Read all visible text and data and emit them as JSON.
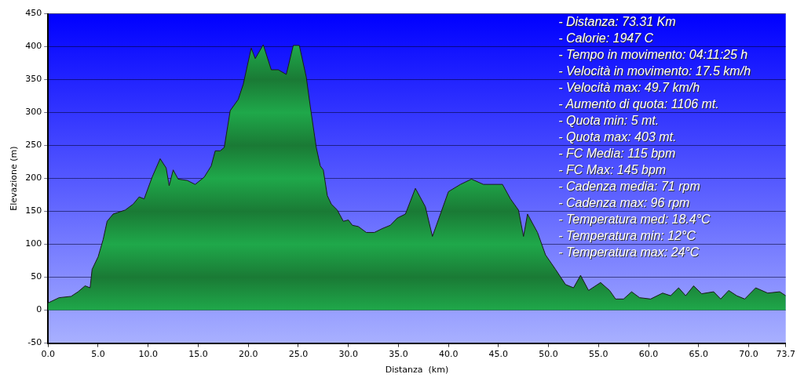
{
  "chart_data": {
    "type": "area",
    "xlabel": "Distanza  (km)",
    "ylabel": "Elevazione (m)",
    "x": [
      0,
      1.1,
      2.3,
      3.0,
      3.7,
      4.2,
      4.4,
      5.0,
      5.5,
      5.9,
      6.5,
      7.7,
      8.5,
      9.1,
      9.6,
      10.4,
      11.2,
      11.8,
      12.1,
      12.5,
      13,
      13.9,
      14.7,
      15.6,
      16.3,
      16.7,
      17.2,
      17.6,
      18.2,
      19,
      19.5,
      20.3,
      20.7,
      21.5,
      22.3,
      23,
      23.8,
      24.5,
      25.1,
      25.8,
      26.2,
      26.8,
      27.2,
      27.5,
      27.9,
      28.3,
      28.9,
      29.5,
      30,
      30.4,
      31,
      31.8,
      32.6,
      33.4,
      34.2,
      34.9,
      35.7,
      36.7,
      37.7,
      38.4,
      39.2,
      40,
      41.2,
      42.3,
      43.5,
      45.4,
      46.2,
      47,
      47.5,
      47.9,
      48.9,
      49.7,
      50.7,
      51.7,
      52.5,
      53.2,
      54,
      55.2,
      56.1,
      56.7,
      57.5,
      58.3,
      59.1,
      60.2,
      61.4,
      62.2,
      63,
      63.7,
      64.5,
      65.3,
      66.5,
      67.2,
      68,
      68.8,
      69.6,
      70.7,
      71.9,
      73.1,
      73.7
    ],
    "series": [
      {
        "color": "#1fa84a",
        "values": [
          11,
          19,
          21,
          28,
          37,
          34,
          62,
          81,
          107,
          135,
          146,
          152,
          161,
          172,
          169,
          202,
          230,
          216,
          189,
          213,
          199,
          197,
          191,
          202,
          219,
          242,
          242,
          247,
          303,
          320,
          343,
          398,
          382,
          403,
          365,
          365,
          358,
          402,
          402,
          354,
          309,
          247,
          219,
          213,
          174,
          161,
          152,
          135,
          137,
          129,
          127,
          118,
          118,
          124,
          129,
          140,
          146,
          185,
          157,
          112,
          146,
          180,
          191,
          199,
          191,
          191,
          169,
          152,
          112,
          146,
          118,
          84,
          62,
          39,
          34,
          53,
          30,
          42,
          30,
          17,
          17,
          28,
          19,
          17,
          26,
          22,
          34,
          22,
          37,
          25,
          28,
          17,
          30,
          22,
          17,
          34,
          26,
          28,
          22
        ]
      }
    ],
    "xlim": [
      0,
      73.7
    ],
    "xticks": [
      {
        "value": 0,
        "label": "0.0"
      },
      {
        "value": 5,
        "label": "5.0"
      },
      {
        "value": 10,
        "label": "10.0"
      },
      {
        "value": 15,
        "label": "15.0"
      },
      {
        "value": 20,
        "label": "20.0"
      },
      {
        "value": 25,
        "label": "25.0"
      },
      {
        "value": 30,
        "label": "30.0"
      },
      {
        "value": 35,
        "label": "35.0"
      },
      {
        "value": 40,
        "label": "40.0"
      },
      {
        "value": 45,
        "label": "45.0"
      },
      {
        "value": 50,
        "label": "50.0"
      },
      {
        "value": 55,
        "label": "55.0"
      },
      {
        "value": 60,
        "label": "60.0"
      },
      {
        "value": 65,
        "label": "65.0"
      },
      {
        "value": 70,
        "label": "70.0"
      },
      73.7
    ],
    "ylim": [
      -50,
      450
    ],
    "yticks": [
      -50,
      0,
      50,
      100,
      150,
      200,
      250,
      300,
      350,
      400,
      450
    ],
    "grid": "y",
    "legend": false,
    "annotations": [
      "- Distanza: 73.31 Km",
      "- Calorie: 1947 C",
      "- Tempo in movimento: 04:11:25 h",
      "- Velocità in movimento: 17.5 km/h",
      "- Velocità max: 49.7 km/h",
      "- Aumento di quota: 1106 mt.",
      "- Quota min: 5 mt.",
      "- Quota max: 403 mt.",
      "- FC Media: 115 bpm",
      "- FC Max: 145 bpm",
      "- Cadenza media: 71 rpm",
      "- Cadenza max: 96 rpm",
      "- Temperatura med: 18.4°C",
      "- Temperatura min: 12°C",
      "- Temperatura max: 24°C"
    ]
  }
}
